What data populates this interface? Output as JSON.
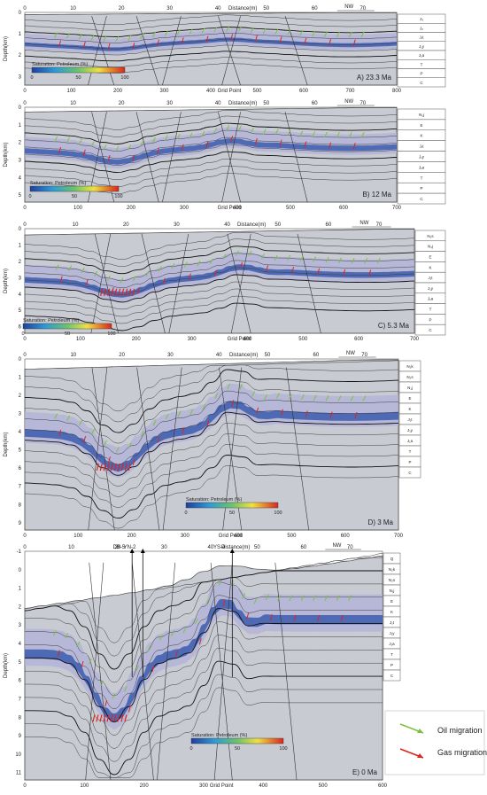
{
  "legend": {
    "oil_label": "Oil migration",
    "gas_label": "Gas migration",
    "oil_color": "#7dc23a",
    "gas_color": "#e0231c"
  },
  "common": {
    "distance_label": "Distance(m)",
    "grid_label": "Grid Point",
    "depth_label": "Depth(km)",
    "nw_label": "NW",
    "colorbar_title": "Saturation: Petroleum (%)",
    "colorbar_ticks": [
      "0",
      "50",
      "100"
    ]
  },
  "panels": [
    {
      "caption": "A) 23.3 Ma",
      "distance_ticks": [
        "0",
        "10",
        "20",
        "30",
        "40",
        "50",
        "60",
        "70"
      ],
      "grid_ticks": [
        "0",
        "100",
        "200",
        "300",
        "400",
        "500",
        "600",
        "700",
        "800"
      ],
      "depth_ticks": [
        "0",
        "1",
        "2",
        "3"
      ],
      "strat": [
        "J₃",
        "J₂",
        "J₁t",
        "J₁y",
        "J₁a",
        "T",
        "P",
        "C"
      ]
    },
    {
      "caption": "B) 12 Ma",
      "distance_ticks": [
        "0",
        "10",
        "20",
        "30",
        "40",
        "50",
        "60",
        "70"
      ],
      "grid_ticks": [
        "0",
        "100",
        "200",
        "300",
        "400",
        "500",
        "600",
        "700"
      ],
      "depth_ticks": [
        "0",
        "1",
        "2",
        "3",
        "4",
        "5"
      ],
      "strat": [
        "N₁j",
        "E",
        "K",
        "J₁t",
        "J₁y",
        "J₁a",
        "T",
        "P",
        "C"
      ]
    },
    {
      "caption": "C) 5.3 Ma",
      "distance_ticks": [
        "0",
        "10",
        "20",
        "30",
        "40",
        "50",
        "60",
        "70"
      ],
      "grid_ticks": [
        "0",
        "100",
        "200",
        "300",
        "400",
        "500",
        "600",
        "700"
      ],
      "depth_ticks": [
        "0",
        "1",
        "2",
        "3",
        "4",
        "5",
        "6"
      ],
      "strat": [
        "N₂s",
        "N₁j",
        "E",
        "K",
        "J₁t",
        "J₁y",
        "J₁a",
        "T",
        "P",
        "C"
      ]
    },
    {
      "caption": "D) 3 Ma",
      "distance_ticks": [
        "0",
        "10",
        "20",
        "30",
        "40",
        "50",
        "60",
        "70"
      ],
      "grid_ticks": [
        "0",
        "100",
        "200",
        "300",
        "400",
        "500",
        "600",
        "700"
      ],
      "depth_ticks": [
        "0",
        "1",
        "2",
        "3",
        "4",
        "5",
        "6",
        "7",
        "8",
        "9"
      ],
      "strat": [
        "N₂k",
        "N₂s",
        "N₁j",
        "E",
        "K",
        "J₁t",
        "J₁y",
        "J₁a",
        "T",
        "P",
        "C"
      ]
    },
    {
      "caption": "E) 0 Ma",
      "distance_ticks": [
        "0",
        "10",
        "20",
        "30",
        "40",
        "50",
        "60",
        "70"
      ],
      "grid_ticks": [
        "0",
        "100",
        "200",
        "300",
        "400",
        "500",
        "600"
      ],
      "depth_ticks": [
        "-1",
        "0",
        "1",
        "2",
        "3",
        "4",
        "5",
        "6",
        "7",
        "8",
        "9",
        "10",
        "11"
      ],
      "strat": [
        "Q",
        "N₂k",
        "N₂s",
        "N₁j",
        "E",
        "K",
        "J₁t",
        "J₁y",
        "J₁a",
        "T",
        "P",
        "C"
      ],
      "wells": [
        "DB-5",
        "YN-2",
        "YS-4"
      ]
    }
  ]
}
